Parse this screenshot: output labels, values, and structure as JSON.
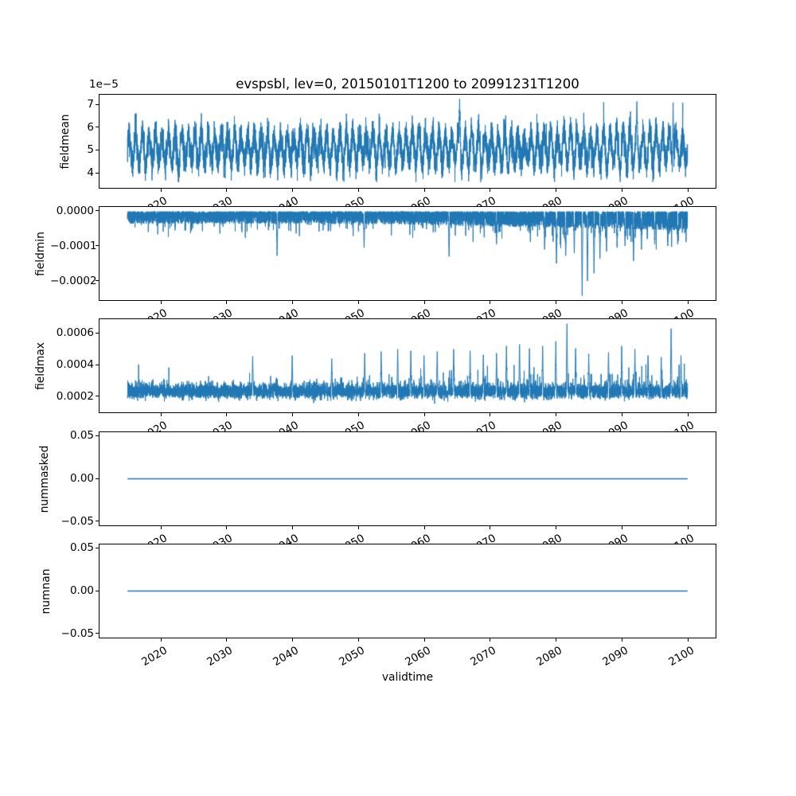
{
  "title": "evspsbl, lev=0, 20150101T1200 to 20991231T1200",
  "xlabel": "validtime",
  "figure": {
    "background": "#ffffff",
    "line_color": "#1f77b4",
    "frame_color": "#000000"
  },
  "x_axis": {
    "label": "validtime",
    "ticks": [
      2020,
      2030,
      2040,
      2050,
      2060,
      2070,
      2080,
      2090,
      2100
    ],
    "tick_labels": [
      "2020",
      "2030",
      "2040",
      "2050",
      "2060",
      "2070",
      "2080",
      "2090",
      "2100"
    ],
    "tick_rotation_deg": 30,
    "xlim": [
      2010.75,
      2104.25
    ],
    "data_start": 2015.0,
    "data_end": 2100.0
  },
  "chart_data": [
    {
      "type": "line",
      "name": "fieldmean",
      "ylabel": "fieldmean",
      "offset_text": "1e−5",
      "unit_scale": 1e-05,
      "yticks": [
        7,
        6,
        5,
        4
      ],
      "ytick_labels": [
        "7",
        "6",
        "5",
        "4"
      ],
      "ylim": [
        3.36,
        7.44
      ],
      "grid": false,
      "legend": false,
      "series": {
        "kind": "seasonal-noise",
        "mean": 5.08,
        "seasonal_amp": 0.62,
        "noise": 0.33,
        "min": 3.62,
        "max": 7.32,
        "spike_dir": 1,
        "big_spikes": [
          [
            2065.4,
            7.25
          ],
          [
            2092.3,
            7.15
          ],
          [
            2097.8,
            7.1
          ]
        ]
      }
    },
    {
      "type": "line",
      "name": "fieldmin",
      "ylabel": "fieldmin",
      "unit_scale": 0.0001,
      "yticks": [
        0,
        -1,
        -2
      ],
      "ytick_labels": [
        "0.0000",
        "−0.0001",
        "−0.0002"
      ],
      "ylim": [
        -2.545,
        0.114
      ],
      "grid": false,
      "legend": false,
      "series": {
        "kind": "spiky-min",
        "band_top": -0.015,
        "band_depth": 0.35,
        "hair_prob": 0.05,
        "spike_dir": -1,
        "big_spikes": [
          [
            2037.7,
            -1.28
          ],
          [
            2050.9,
            -1.05
          ],
          [
            2063.8,
            -1.3
          ],
          [
            2071.0,
            -0.95
          ],
          [
            2078.3,
            -1.1
          ],
          [
            2080.1,
            -1.5
          ],
          [
            2081.5,
            -1.28
          ],
          [
            2082.8,
            -1.2
          ],
          [
            2084.0,
            -2.42
          ],
          [
            2084.8,
            -2.0
          ],
          [
            2085.8,
            -1.78
          ],
          [
            2086.7,
            -1.36
          ],
          [
            2087.7,
            -1.16
          ],
          [
            2089.3,
            -1.05
          ],
          [
            2090.5,
            -1.0
          ],
          [
            2091.8,
            -1.43
          ],
          [
            2093.0,
            -1.1
          ],
          [
            2095.0,
            -0.95
          ],
          [
            2097.0,
            -1.0
          ],
          [
            2098.5,
            -0.95
          ]
        ]
      }
    },
    {
      "type": "line",
      "name": "fieldmax",
      "ylabel": "fieldmax",
      "unit_scale": 0.0001,
      "yticks": [
        6,
        4,
        2
      ],
      "ytick_labels": [
        "0.0006",
        "0.0004",
        "0.0002"
      ],
      "ylim": [
        1.02,
        6.89
      ],
      "grid": false,
      "legend": false,
      "series": {
        "kind": "spiky-max",
        "band_mid": 2.32,
        "band_half": 0.31,
        "noise": 0.15,
        "spike_dir": 1,
        "big_spikes": [
          [
            2034.0,
            4.55
          ],
          [
            2040.0,
            4.6
          ],
          [
            2046.0,
            4.4
          ],
          [
            2051.0,
            4.75
          ],
          [
            2053.5,
            4.85
          ],
          [
            2056.0,
            5.0
          ],
          [
            2058.0,
            4.9
          ],
          [
            2060.0,
            4.6
          ],
          [
            2062.0,
            4.85
          ],
          [
            2064.5,
            5.0
          ],
          [
            2067.0,
            4.9
          ],
          [
            2069.0,
            4.65
          ],
          [
            2071.0,
            4.75
          ],
          [
            2072.5,
            5.2
          ],
          [
            2074.5,
            5.3
          ],
          [
            2076.0,
            5.05
          ],
          [
            2078.0,
            5.2
          ],
          [
            2080.0,
            5.5
          ],
          [
            2081.7,
            6.6
          ],
          [
            2083.0,
            5.05
          ],
          [
            2085.0,
            4.7
          ],
          [
            2088.0,
            4.8
          ],
          [
            2090.0,
            5.2
          ],
          [
            2092.0,
            5.0
          ],
          [
            2094.0,
            4.6
          ],
          [
            2096.0,
            4.5
          ],
          [
            2097.5,
            6.3
          ],
          [
            2099.0,
            4.6
          ]
        ]
      }
    },
    {
      "type": "line",
      "name": "nummasked",
      "ylabel": "nummasked",
      "unit_scale": 1,
      "yticks": [
        0.05,
        0.0,
        -0.05
      ],
      "ytick_labels": [
        "0.05",
        "0.00",
        "−0.05"
      ],
      "ylim": [
        -0.0545,
        0.0545
      ],
      "grid": false,
      "legend": false,
      "series": {
        "kind": "constant",
        "value": 0.0
      }
    },
    {
      "type": "line",
      "name": "numnan",
      "ylabel": "numnan",
      "unit_scale": 1,
      "yticks": [
        0.05,
        0.0,
        -0.05
      ],
      "ytick_labels": [
        "0.05",
        "0.00",
        "−0.05"
      ],
      "ylim": [
        -0.0545,
        0.0545
      ],
      "grid": false,
      "legend": false,
      "series": {
        "kind": "constant",
        "value": 0.0
      }
    }
  ]
}
